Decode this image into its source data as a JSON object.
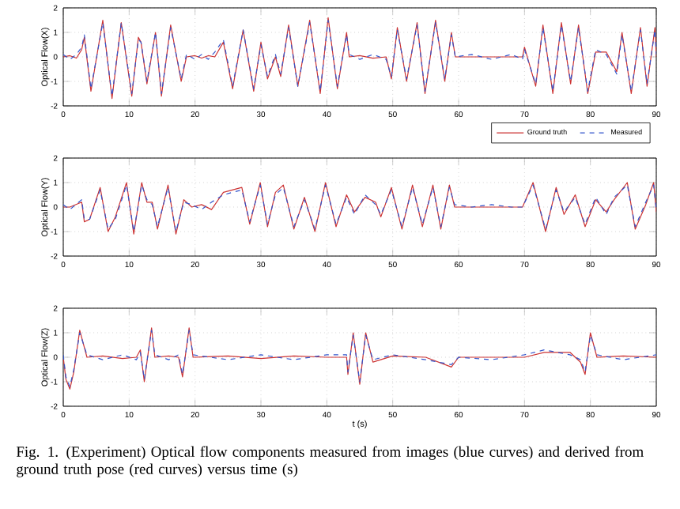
{
  "chart_data": [
    {
      "type": "line",
      "ylabel": "Optical Flow(X)",
      "xlim": [
        0,
        90
      ],
      "xticks": [
        0,
        10,
        20,
        30,
        40,
        50,
        60,
        70,
        80,
        90
      ],
      "ylim": [
        -2,
        2
      ],
      "yticks": [
        -2,
        -1,
        0,
        1,
        2
      ],
      "grid": true,
      "legend": "bottom right",
      "x": [
        0,
        1,
        2,
        2.8,
        3.2,
        4.2,
        6,
        7.4,
        8.8,
        10.4,
        11.4,
        11.8,
        12.7,
        14,
        14.9,
        16.3,
        17.9,
        18.7,
        20,
        21,
        22,
        23,
        24.3,
        25.7,
        27.3,
        28.9,
        30,
        31,
        32.2,
        33,
        34.2,
        35.6,
        37.4,
        39,
        40.2,
        41.6,
        43,
        43.4,
        45,
        47,
        49,
        49.8,
        50.7,
        52.1,
        53.7,
        54.9,
        56.5,
        57.9,
        58.9,
        59.5,
        62,
        65,
        68,
        69.7,
        70,
        71.7,
        72.8,
        74.3,
        75.6,
        77,
        78.2,
        79.6,
        80.8,
        82.4,
        84,
        84.8,
        86.2,
        87.6,
        88.6,
        89.8,
        90
      ],
      "series": [
        {
          "name": "Ground truth",
          "color": "#cc3333",
          "line_style": "solid",
          "values": [
            0,
            0.05,
            -0.05,
            0.3,
            0.8,
            -1.4,
            1.5,
            -1.7,
            1.4,
            -1.6,
            0.8,
            0.6,
            -1.1,
            1.0,
            -1.6,
            1.3,
            -1.0,
            0,
            0.05,
            -0.05,
            0.05,
            0,
            0.6,
            -1.3,
            1.1,
            -1.4,
            0.6,
            -0.9,
            0,
            -0.8,
            1.3,
            -1.2,
            1.5,
            -1.5,
            1.6,
            -1.3,
            1.0,
            0,
            0.05,
            -0.05,
            0,
            -0.9,
            1.2,
            -1.0,
            1.4,
            -1.5,
            1.5,
            -1.0,
            1.0,
            0,
            0,
            0,
            0,
            0,
            0.4,
            -1.2,
            1.3,
            -1.5,
            1.4,
            -1.1,
            1.3,
            -1.5,
            0.2,
            0.2,
            -0.6,
            1.0,
            -1.5,
            1.2,
            -1.2,
            1.2,
            0
          ]
        },
        {
          "name": "Measured",
          "color": "#3355cc",
          "line_style": "dashed",
          "values": [
            0.1,
            -0.1,
            0.1,
            0.4,
            0.9,
            -1.3,
            1.4,
            -1.6,
            1.4,
            -1.5,
            0.7,
            0.6,
            -1.0,
            1.0,
            -1.5,
            1.2,
            -0.9,
            0.1,
            -0.1,
            0.1,
            -0.1,
            0.2,
            0.7,
            -1.2,
            1.1,
            -1.3,
            0.5,
            -0.8,
            0.1,
            -0.7,
            1.2,
            -1.2,
            1.4,
            -1.4,
            1.5,
            -1.2,
            0.9,
            0.1,
            -0.1,
            0.1,
            -0.1,
            -0.8,
            1.1,
            -0.9,
            1.3,
            -1.4,
            1.4,
            -0.9,
            0.9,
            0,
            0.1,
            -0.1,
            0.1,
            -0.1,
            0.3,
            -1.1,
            1.2,
            -1.4,
            1.3,
            -1.0,
            1.2,
            -1.4,
            0.3,
            0.1,
            -0.7,
            0.9,
            -1.4,
            1.1,
            -1.1,
            1.1,
            0.1
          ]
        }
      ]
    },
    {
      "type": "line",
      "ylabel": "Optical Flow(Y)",
      "xlim": [
        0,
        90
      ],
      "xticks": [
        0,
        10,
        20,
        30,
        40,
        50,
        60,
        70,
        80,
        90
      ],
      "ylim": [
        -2,
        2
      ],
      "yticks": [
        -2,
        -1,
        0,
        1,
        2
      ],
      "grid": true,
      "x": [
        0,
        1,
        2.8,
        3.2,
        4,
        5.6,
        6.8,
        7.9,
        9.6,
        10.7,
        11.9,
        12.7,
        13.5,
        14.3,
        15.9,
        17.1,
        18.3,
        19.5,
        21,
        22.5,
        24.3,
        27.1,
        28.3,
        29.9,
        31,
        32.2,
        33.4,
        35,
        36.6,
        38.2,
        39.8,
        41.4,
        43,
        44.2,
        45.8,
        47.4,
        48.2,
        49.8,
        51.4,
        53,
        54.5,
        56.1,
        57.3,
        58.6,
        59.4,
        62,
        65,
        68,
        69.7,
        71.3,
        73.2,
        74.8,
        76,
        77.7,
        79.2,
        80.8,
        82.4,
        83.6,
        85.6,
        86.8,
        88.4,
        89.6,
        90
      ],
      "series": [
        {
          "color": "#cc3333",
          "line_style": "solid",
          "values": [
            0,
            0,
            0.2,
            -0.6,
            -0.5,
            0.8,
            -1.0,
            -0.4,
            1.0,
            -1.1,
            1.0,
            0.2,
            0.2,
            -0.9,
            0.9,
            -1.1,
            0.3,
            0,
            0.1,
            -0.1,
            0.6,
            0.8,
            -0.7,
            1.0,
            -0.8,
            0.6,
            0.9,
            -0.9,
            0.4,
            -1.0,
            1.0,
            -0.8,
            0.5,
            -0.2,
            0.4,
            0.2,
            -0.4,
            0.8,
            -0.9,
            0.9,
            -0.8,
            0.9,
            -0.9,
            0.9,
            0,
            0,
            0,
            0,
            0,
            1.0,
            -1.0,
            0.8,
            -0.3,
            0.5,
            -0.8,
            0.3,
            -0.2,
            0.3,
            1.0,
            -0.9,
            0.1,
            1.0,
            -0.2
          ]
        },
        {
          "color": "#3355cc",
          "line_style": "dashed",
          "values": [
            0.1,
            -0.1,
            0.3,
            -0.5,
            -0.5,
            0.7,
            -0.9,
            -0.5,
            0.9,
            -1.0,
            0.9,
            0.3,
            0.1,
            -0.8,
            0.8,
            -1.0,
            0.2,
            0.1,
            -0.1,
            0.2,
            0.5,
            0.7,
            -0.6,
            0.9,
            -0.7,
            0.5,
            0.8,
            -0.8,
            0.3,
            -0.9,
            0.9,
            -0.7,
            0.4,
            -0.3,
            0.5,
            0.1,
            -0.3,
            0.7,
            -0.8,
            0.8,
            -0.7,
            0.8,
            -0.8,
            0.8,
            0.1,
            0,
            0.1,
            0,
            0,
            0.9,
            -0.9,
            0.7,
            -0.2,
            0.4,
            -0.7,
            0.4,
            -0.3,
            0.4,
            0.9,
            -0.8,
            0.2,
            0.9,
            -0.1
          ]
        }
      ]
    },
    {
      "type": "line",
      "ylabel": "Optical Flow(Z)",
      "xlabel": "t (s)",
      "xlim": [
        0,
        90
      ],
      "xticks": [
        0,
        10,
        20,
        30,
        40,
        50,
        60,
        70,
        80,
        90
      ],
      "ylim": [
        -2,
        2
      ],
      "yticks": [
        -2,
        -1,
        0,
        1,
        2
      ],
      "grid": true,
      "annotations": [
        "Fig. 1.   (Experiment) Optical flow components measured from images (blue curves) and derived from ground truth pose (red curves) versus time (s)"
      ],
      "x": [
        0,
        0.4,
        1,
        1.6,
        2.5,
        3.6,
        6,
        9,
        11.1,
        11.7,
        12.3,
        13.4,
        13.9,
        16,
        17.5,
        18.1,
        19.1,
        19.7,
        25,
        30,
        35,
        40,
        43,
        43.2,
        44,
        45,
        45.9,
        47,
        50,
        55,
        58.9,
        60,
        65,
        70,
        73,
        76.9,
        78.5,
        79.2,
        80,
        81,
        85,
        90
      ],
      "series": [
        {
          "color": "#cc3333",
          "line_style": "solid",
          "values": [
            0,
            -0.9,
            -1.3,
            -0.6,
            1.1,
            0,
            0.05,
            -0.05,
            0,
            0.3,
            -1.0,
            1.2,
            0,
            0.05,
            0,
            -0.8,
            1.2,
            0,
            0.05,
            -0.05,
            0.05,
            0,
            0,
            -0.7,
            1.0,
            -1.1,
            1.0,
            -0.2,
            0.05,
            0,
            -0.4,
            0,
            0,
            0,
            0.2,
            0.2,
            -0.2,
            -0.7,
            1.0,
            0,
            0.05,
            0
          ]
        },
        {
          "color": "#3355cc",
          "line_style": "dashed",
          "values": [
            0.1,
            -0.8,
            -1.2,
            -0.5,
            1.0,
            0.1,
            -0.1,
            0.1,
            -0.1,
            0.2,
            -0.9,
            1.1,
            0.1,
            -0.1,
            0.1,
            -0.7,
            1.1,
            0.1,
            -0.1,
            0.1,
            -0.1,
            0.1,
            0.1,
            -0.6,
            0.9,
            -1.0,
            0.9,
            -0.1,
            0.1,
            -0.1,
            -0.3,
            0,
            -0.1,
            0.1,
            0.3,
            0.1,
            -0.1,
            -0.6,
            0.9,
            0.1,
            -0.1,
            0.1
          ]
        }
      ]
    }
  ]
}
